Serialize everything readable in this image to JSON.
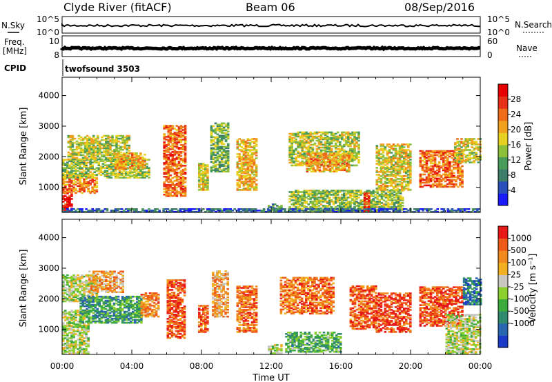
{
  "header": {
    "station": "Clyde River (fitACF)",
    "beam": "Beam 06",
    "date": "08/Sep/2016"
  },
  "top_panels": {
    "nsky": {
      "label": "N.Sky",
      "y_max": "10^5",
      "y_min": "10^0"
    },
    "nsearch": {
      "label": "N.Search",
      "y_max": "10^5",
      "y_min": "10^0"
    },
    "freq": {
      "label_line1": "Freq.",
      "label_line2": "[MHz]",
      "y_max": "10",
      "y_min": "8"
    },
    "nave": {
      "label": "Nave",
      "y_max": "60",
      "y_min": "0"
    },
    "cpid": {
      "label": "CPID",
      "value": "twofsound 3503"
    }
  },
  "chart_data": [
    {
      "type": "heatmap",
      "name": "power",
      "ylabel": "Slant Range [km]",
      "xlabel": "Time UT",
      "xlim": [
        0,
        24
      ],
      "ylim": [
        180,
        4600
      ],
      "x_ticks": [
        "00:00",
        "04:00",
        "08:00",
        "12:00",
        "16:00",
        "20:00",
        "00:00"
      ],
      "y_ticks": [
        1000,
        2000,
        3000,
        4000
      ],
      "colorbar": {
        "label": "Power [dB]",
        "ticks": [
          "4",
          "8",
          "12",
          "16",
          "20",
          "24",
          "28"
        ],
        "colors": [
          "#1a1aff",
          "#2a4fb8",
          "#3d7d6a",
          "#4a9a5a",
          "#8dbf3a",
          "#e8d020",
          "#f2a020",
          "#ef6d1a",
          "#e83018",
          "#e80000"
        ]
      },
      "regions": [
        {
          "t0": 0.0,
          "t1": 0.6,
          "r0": 200,
          "r1": 1000,
          "level": 0.95
        },
        {
          "t0": 0.0,
          "t1": 2.0,
          "r0": 800,
          "r1": 1400,
          "level": 0.7
        },
        {
          "t0": 0.0,
          "t1": 5.0,
          "r0": 1300,
          "r1": 1900,
          "level": 0.45
        },
        {
          "t0": 0.3,
          "t1": 3.8,
          "r0": 1900,
          "r1": 2700,
          "level": 0.5
        },
        {
          "t0": 3.0,
          "t1": 4.8,
          "r0": 1600,
          "r1": 2100,
          "level": 0.65
        },
        {
          "t0": 5.8,
          "t1": 7.1,
          "r0": 700,
          "r1": 3000,
          "level": 0.75
        },
        {
          "t0": 7.8,
          "t1": 8.3,
          "r0": 900,
          "r1": 1800,
          "level": 0.55
        },
        {
          "t0": 8.5,
          "t1": 9.5,
          "r0": 1500,
          "r1": 3100,
          "level": 0.4
        },
        {
          "t0": 10.0,
          "t1": 11.1,
          "r0": 900,
          "r1": 2600,
          "level": 0.6
        },
        {
          "t0": 11.8,
          "t1": 12.6,
          "r0": 200,
          "r1": 450,
          "level": 0.3
        },
        {
          "t0": 13.0,
          "t1": 19.5,
          "r0": 200,
          "r1": 900,
          "level": 0.45
        },
        {
          "t0": 17.3,
          "t1": 17.6,
          "r0": 200,
          "r1": 800,
          "level": 0.9
        },
        {
          "t0": 13.0,
          "t1": 17.0,
          "r0": 1700,
          "r1": 2800,
          "level": 0.5
        },
        {
          "t0": 14.0,
          "t1": 16.5,
          "r0": 1500,
          "r1": 2100,
          "level": 0.65
        },
        {
          "t0": 18.0,
          "t1": 20.0,
          "r0": 900,
          "r1": 2400,
          "level": 0.55
        },
        {
          "t0": 20.5,
          "t1": 23.0,
          "r0": 1000,
          "r1": 2200,
          "level": 0.75
        },
        {
          "t0": 22.5,
          "t1": 24.0,
          "r0": 1800,
          "r1": 2600,
          "level": 0.55
        },
        {
          "t0": 0.0,
          "t1": 24.0,
          "r0": 180,
          "r1": 300,
          "level": 0.2
        }
      ]
    },
    {
      "type": "heatmap",
      "name": "velocity",
      "ylabel": "Slant Range [km]",
      "xlabel": "Time UT",
      "xlim": [
        0,
        24
      ],
      "ylim": [
        180,
        4600
      ],
      "x_ticks": [
        "00:00",
        "04:00",
        "08:00",
        "12:00",
        "16:00",
        "20:00",
        "00:00"
      ],
      "y_ticks": [
        1000,
        2000,
        3000,
        4000
      ],
      "colorbar": {
        "label": "Velocity [m s⁻¹]",
        "ticks": [
          "1000",
          "500",
          "100",
          "25",
          "-25",
          "-100",
          "-500",
          "-1000"
        ],
        "colors": [
          "#1c3ac8",
          "#2a66b0",
          "#2f8a6e",
          "#3caa3c",
          "#8cd030",
          "#c8c8c0",
          "#f0b020",
          "#f08a20",
          "#f05a18",
          "#e81818"
        ]
      },
      "regions": [
        {
          "t0": 0.0,
          "t1": 2.0,
          "r0": 1900,
          "r1": 2800,
          "level": 0.5
        },
        {
          "t0": 0.0,
          "t1": 1.5,
          "r0": 200,
          "r1": 1600,
          "level": 0.5
        },
        {
          "t0": 1.0,
          "t1": 4.5,
          "r0": 1200,
          "r1": 2100,
          "level": 0.3
        },
        {
          "t0": 1.5,
          "t1": 3.5,
          "r0": 2200,
          "r1": 2900,
          "level": 0.7
        },
        {
          "t0": 4.5,
          "t1": 5.5,
          "r0": 1400,
          "r1": 2200,
          "level": 0.75
        },
        {
          "t0": 6.0,
          "t1": 7.0,
          "r0": 700,
          "r1": 2600,
          "level": 0.85
        },
        {
          "t0": 7.8,
          "t1": 8.3,
          "r0": 900,
          "r1": 1800,
          "level": 0.85
        },
        {
          "t0": 8.6,
          "t1": 9.5,
          "r0": 1400,
          "r1": 2900,
          "level": 0.7
        },
        {
          "t0": 10.0,
          "t1": 11.1,
          "r0": 900,
          "r1": 2400,
          "level": 0.8
        },
        {
          "t0": 11.8,
          "t1": 12.6,
          "r0": 200,
          "r1": 500,
          "level": 0.5
        },
        {
          "t0": 12.5,
          "t1": 15.5,
          "r0": 1500,
          "r1": 2700,
          "level": 0.8
        },
        {
          "t0": 12.8,
          "t1": 16.0,
          "r0": 250,
          "r1": 900,
          "level": 0.35
        },
        {
          "t0": 16.5,
          "t1": 18.0,
          "r0": 1000,
          "r1": 2400,
          "level": 0.85
        },
        {
          "t0": 18.0,
          "t1": 20.0,
          "r0": 900,
          "r1": 2200,
          "level": 0.9
        },
        {
          "t0": 20.5,
          "t1": 23.0,
          "r0": 1100,
          "r1": 2400,
          "level": 0.85
        },
        {
          "t0": 23.0,
          "t1": 24.0,
          "r0": 1800,
          "r1": 2700,
          "level": 0.2
        },
        {
          "t0": 22.0,
          "t1": 24.0,
          "r0": 200,
          "r1": 1500,
          "level": 0.5
        }
      ]
    }
  ]
}
